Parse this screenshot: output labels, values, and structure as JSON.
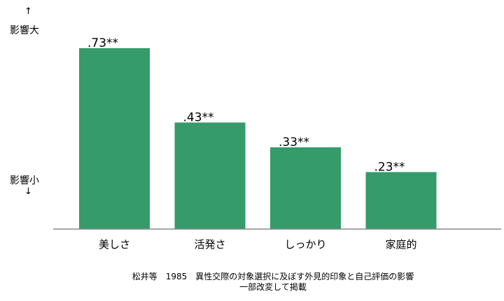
{
  "y_axis": {
    "top_arrow": "↑",
    "top_label": "影響大",
    "bottom_label": "影響小",
    "bottom_arrow": "↓"
  },
  "caption": {
    "line1": "松井等　1985　異性交際の対象選択に及ぼす外見的印象と自己評価の影響",
    "line2": "一部改変して掲載"
  },
  "chart_data": {
    "type": "bar",
    "categories": [
      "美しさ",
      "活発さ",
      "しっかり",
      "家庭的"
    ],
    "values": [
      0.73,
      0.43,
      0.33,
      0.23
    ],
    "data_labels": [
      ".73**",
      ".43**",
      ".33**",
      ".23**"
    ],
    "bar_color": "#359b6a",
    "ylim": [
      -0.05,
      0.8
    ],
    "grid": false,
    "xlabel": "",
    "ylabel": ""
  }
}
